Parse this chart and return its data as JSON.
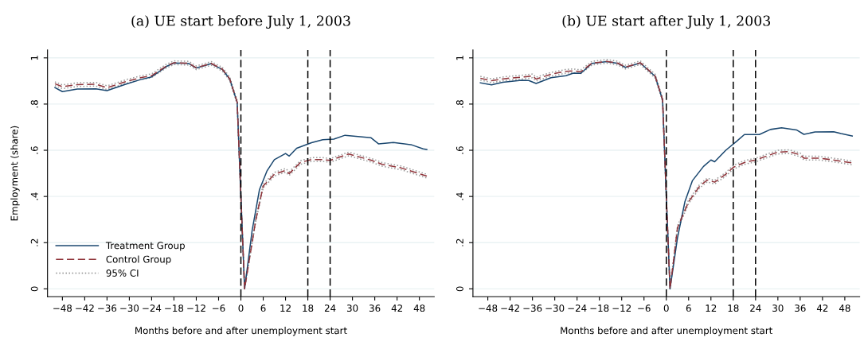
{
  "chart_data": [
    {
      "type": "line",
      "title": "(a) UE start before July 1, 2003",
      "xlabel": "Months before and after unemployment start",
      "ylabel": "Employment (share)",
      "xlim": [
        -52,
        52
      ],
      "ylim": [
        -0.034,
        1.034
      ],
      "xticks": [
        {
          "value": -48,
          "label": "−48"
        },
        {
          "value": -42,
          "label": "−42"
        },
        {
          "value": -36,
          "label": "−36"
        },
        {
          "value": -30,
          "label": "−30"
        },
        {
          "value": -24,
          "label": "−24"
        },
        {
          "value": -18,
          "label": "−18"
        },
        {
          "value": -12,
          "label": "−12"
        },
        {
          "value": -6,
          "label": "−6"
        },
        0,
        6,
        12,
        18,
        24,
        30,
        36,
        42,
        48
      ],
      "yticks": [
        0,
        {
          "value": 0.2,
          "label": ".2"
        },
        {
          "value": 0.4,
          "label": ".4"
        },
        {
          "value": 0.6,
          "label": ".6"
        },
        {
          "value": 0.8,
          "label": ".8"
        },
        1
      ],
      "grid": "y",
      "legend": "bottom left",
      "marker": "none",
      "ref_lines": [
        {
          "axis": "x",
          "value": 0,
          "color": "#000000",
          "line_style": "dashed"
        },
        {
          "axis": "x",
          "value": 18,
          "color": "#000000",
          "line_style": "dashed"
        },
        {
          "axis": "x",
          "value": 24,
          "color": "#000000",
          "line_style": "dashed"
        }
      ],
      "series": [
        {
          "name": "Treatment Group",
          "color": "#1a476f",
          "line_style": "solid",
          "x": [
            -50,
            -48,
            -44,
            -39,
            -36,
            -31,
            -27,
            -24,
            -20,
            -18,
            -14,
            -12,
            -8,
            -5,
            -3,
            -1,
            0,
            1,
            3,
            5,
            7,
            9,
            12,
            13,
            15,
            19,
            22,
            25,
            28,
            35,
            37,
            41,
            46,
            49,
            50
          ],
          "values": [
            0.871,
            0.854,
            0.865,
            0.866,
            0.858,
            0.886,
            0.906,
            0.918,
            0.963,
            0.978,
            0.976,
            0.956,
            0.975,
            0.95,
            0.908,
            0.807,
            0.4,
            0,
            0.25,
            0.43,
            0.51,
            0.559,
            0.586,
            0.575,
            0.609,
            0.633,
            0.646,
            0.648,
            0.665,
            0.654,
            0.628,
            0.634,
            0.623,
            0.606,
            0.603
          ]
        },
        {
          "name": "Control Group",
          "color": "#90353b",
          "line_style": "dashed",
          "x": [
            -50,
            -48,
            -44,
            -39,
            -36,
            -31,
            -27,
            -24,
            -20,
            -18,
            -14,
            -12,
            -8,
            -5,
            -3,
            -1,
            0,
            1,
            4,
            6,
            9,
            12,
            13,
            16,
            19,
            22,
            24,
            29,
            35,
            38,
            43,
            50
          ],
          "values": [
            0.888,
            0.875,
            0.884,
            0.886,
            0.871,
            0.897,
            0.914,
            0.923,
            0.965,
            0.979,
            0.977,
            0.957,
            0.976,
            0.951,
            0.909,
            0.808,
            0.4,
            0,
            0.298,
            0.445,
            0.496,
            0.513,
            0.499,
            0.547,
            0.56,
            0.56,
            0.556,
            0.584,
            0.557,
            0.539,
            0.524,
            0.488
          ]
        },
        {
          "name": "95% CI",
          "color": "#999999",
          "line_style": "dotted",
          "x": [
            -50,
            -48,
            -44,
            -39,
            -36,
            -31,
            -27,
            -24,
            -20,
            -18,
            -14,
            -12,
            -8,
            -5,
            -3,
            -1,
            0,
            1,
            4,
            6,
            9,
            12,
            13,
            16,
            19,
            22,
            24,
            29,
            35,
            38,
            43,
            50
          ],
          "values": [
            0.88,
            0.867,
            0.876,
            0.878,
            0.863,
            0.889,
            0.906,
            0.915,
            0.957,
            0.971,
            0.969,
            0.949,
            0.968,
            0.943,
            0.901,
            0.8,
            0.392,
            0,
            0.29,
            0.437,
            0.488,
            0.505,
            0.491,
            0.539,
            0.552,
            0.552,
            0.548,
            0.576,
            0.549,
            0.531,
            0.516,
            0.48
          ]
        },
        {
          "color": "#999999",
          "line_style": "dotted",
          "x": [
            -50,
            -48,
            -44,
            -39,
            -36,
            -31,
            -27,
            -24,
            -20,
            -18,
            -14,
            -12,
            -8,
            -5,
            -3,
            -1,
            0,
            1,
            4,
            6,
            9,
            12,
            13,
            16,
            19,
            22,
            24,
            29,
            35,
            38,
            43,
            50
          ],
          "values": [
            0.896,
            0.883,
            0.892,
            0.894,
            0.879,
            0.905,
            0.922,
            0.931,
            0.973,
            0.987,
            0.985,
            0.965,
            0.984,
            0.959,
            0.917,
            0.816,
            0.408,
            0.008,
            0.306,
            0.453,
            0.504,
            0.521,
            0.507,
            0.555,
            0.568,
            0.568,
            0.564,
            0.592,
            0.565,
            0.547,
            0.532,
            0.496
          ]
        }
      ]
    },
    {
      "type": "line",
      "title": "(b) UE start after July 1, 2003",
      "xlabel": "Months before and after unemployment start",
      "xlim": [
        -52,
        52
      ],
      "ylim": [
        -0.034,
        1.034
      ],
      "xticks": [
        {
          "value": -48,
          "label": "−48"
        },
        {
          "value": -42,
          "label": "−42"
        },
        {
          "value": -36,
          "label": "−36"
        },
        {
          "value": -30,
          "label": "−30"
        },
        {
          "value": -24,
          "label": "−24"
        },
        {
          "value": -18,
          "label": "−18"
        },
        {
          "value": -12,
          "label": "−12"
        },
        {
          "value": -6,
          "label": "−6"
        },
        0,
        6,
        12,
        18,
        24,
        30,
        36,
        42,
        48
      ],
      "yticks": [
        0,
        {
          "value": 0.2,
          "label": ".2"
        },
        {
          "value": 0.4,
          "label": ".4"
        },
        {
          "value": 0.6,
          "label": ".6"
        },
        {
          "value": 0.8,
          "label": ".8"
        },
        1
      ],
      "grid": "y",
      "marker": "none",
      "ref_lines": [
        {
          "axis": "x",
          "value": 0,
          "color": "#000000",
          "line_style": "dashed"
        },
        {
          "axis": "x",
          "value": 18,
          "color": "#000000",
          "line_style": "dashed"
        },
        {
          "axis": "x",
          "value": 24,
          "color": "#000000",
          "line_style": "dashed"
        }
      ],
      "series": [
        {
          "color": "#1a476f",
          "line_style": "solid",
          "x": [
            -50,
            -47,
            -44,
            -39,
            -37,
            -35,
            -31,
            -27,
            -25,
            -23,
            -20,
            -16,
            -13,
            -11,
            -7,
            -3,
            -1,
            0,
            1,
            3,
            5,
            7,
            10,
            12,
            13,
            16,
            19,
            21,
            25,
            28,
            31,
            35,
            37,
            40,
            45,
            47,
            50
          ],
          "values": [
            0.892,
            0.883,
            0.894,
            0.903,
            0.902,
            0.889,
            0.914,
            0.923,
            0.934,
            0.933,
            0.976,
            0.984,
            0.976,
            0.959,
            0.978,
            0.92,
            0.818,
            0.4,
            0,
            0.22,
            0.377,
            0.468,
            0.53,
            0.558,
            0.55,
            0.6,
            0.64,
            0.668,
            0.668,
            0.69,
            0.697,
            0.688,
            0.669,
            0.679,
            0.68,
            0.672,
            0.662
          ]
        },
        {
          "color": "#90353b",
          "line_style": "dashed",
          "x": [
            -50,
            -47,
            -43,
            -38,
            -36,
            -35,
            -31,
            -27,
            -25,
            -23,
            -20,
            -16,
            -13,
            -11,
            -7,
            -3,
            -1,
            0,
            1,
            2,
            3,
            6,
            9,
            11,
            13,
            16,
            18,
            21,
            24,
            27,
            30,
            33,
            36,
            37,
            41,
            44,
            50
          ],
          "values": [
            0.912,
            0.901,
            0.911,
            0.918,
            0.922,
            0.908,
            0.929,
            0.942,
            0.944,
            0.94,
            0.977,
            0.985,
            0.977,
            0.96,
            0.979,
            0.921,
            0.819,
            0.4,
            0,
            0.129,
            0.264,
            0.377,
            0.445,
            0.471,
            0.462,
            0.496,
            0.526,
            0.547,
            0.558,
            0.575,
            0.592,
            0.594,
            0.58,
            0.566,
            0.566,
            0.56,
            0.545
          ]
        },
        {
          "color": "#999999",
          "line_style": "dotted",
          "x": [
            -50,
            -47,
            -43,
            -38,
            -36,
            -35,
            -31,
            -27,
            -25,
            -23,
            -20,
            -16,
            -13,
            -11,
            -7,
            -3,
            -1,
            0,
            1,
            2,
            3,
            6,
            9,
            11,
            13,
            16,
            18,
            21,
            24,
            27,
            30,
            33,
            36,
            37,
            41,
            44,
            50
          ],
          "values": [
            0.904,
            0.893,
            0.903,
            0.91,
            0.914,
            0.9,
            0.921,
            0.934,
            0.936,
            0.932,
            0.969,
            0.977,
            0.969,
            0.952,
            0.971,
            0.913,
            0.811,
            0.392,
            0,
            0.121,
            0.256,
            0.369,
            0.437,
            0.463,
            0.454,
            0.488,
            0.518,
            0.539,
            0.55,
            0.567,
            0.584,
            0.586,
            0.572,
            0.558,
            0.558,
            0.552,
            0.537
          ]
        },
        {
          "color": "#999999",
          "line_style": "dotted",
          "x": [
            -50,
            -47,
            -43,
            -38,
            -36,
            -35,
            -31,
            -27,
            -25,
            -23,
            -20,
            -16,
            -13,
            -11,
            -7,
            -3,
            -1,
            0,
            1,
            2,
            3,
            6,
            9,
            11,
            13,
            16,
            18,
            21,
            24,
            27,
            30,
            33,
            36,
            37,
            41,
            44,
            50
          ],
          "values": [
            0.92,
            0.909,
            0.919,
            0.926,
            0.93,
            0.916,
            0.937,
            0.95,
            0.952,
            0.948,
            0.985,
            0.993,
            0.985,
            0.968,
            0.987,
            0.929,
            0.827,
            0.408,
            0.008,
            0.137,
            0.272,
            0.385,
            0.453,
            0.479,
            0.47,
            0.504,
            0.534,
            0.555,
            0.566,
            0.583,
            0.6,
            0.602,
            0.588,
            0.574,
            0.574,
            0.568,
            0.553
          ]
        }
      ]
    }
  ]
}
